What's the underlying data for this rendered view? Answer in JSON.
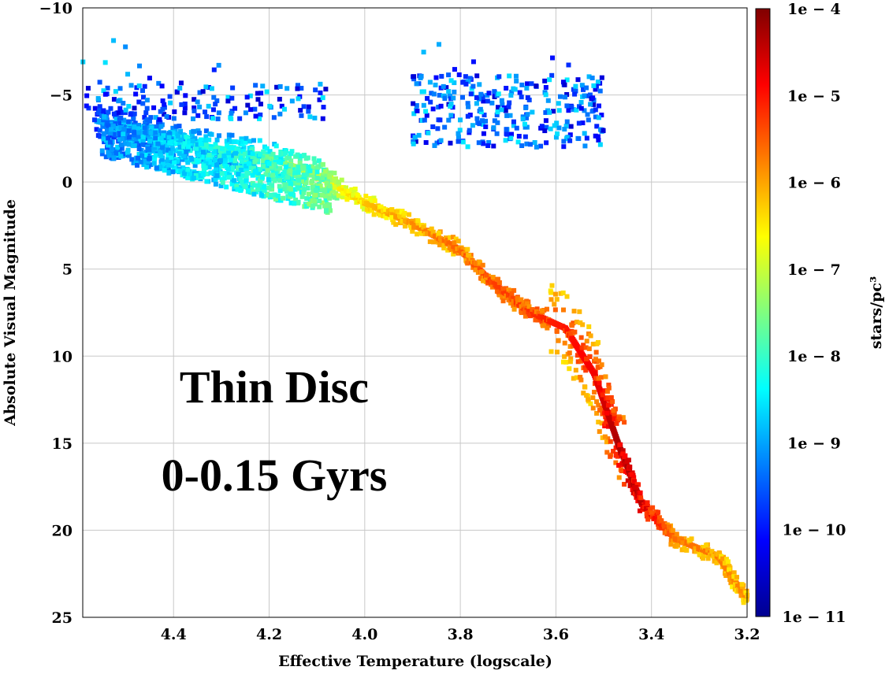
{
  "chart_data": {
    "type": "heatmap",
    "xlabel": "Effective Temperature (logscale)",
    "ylabel": "Absolute Visual Magnitude",
    "xlim": [
      4.59,
      3.2
    ],
    "ylim": [
      25,
      -10
    ],
    "x_ticks": [
      "4.4",
      "4.2",
      "4.0",
      "3.8",
      "3.6",
      "3.4",
      "3.2"
    ],
    "x_tick_values": [
      4.4,
      4.2,
      4.0,
      3.8,
      3.6,
      3.4,
      3.2
    ],
    "y_ticks": [
      "−10",
      "−5",
      "0",
      "5",
      "10",
      "15",
      "20",
      "25"
    ],
    "y_tick_values": [
      -10,
      -5,
      0,
      5,
      10,
      15,
      20,
      25
    ],
    "grid": true,
    "colorbar": {
      "label": "stars/pc³",
      "scale": "log",
      "ticks": [
        "1e − 4",
        "1e − 5",
        "1e − 6",
        "1e − 7",
        "1e − 8",
        "1e − 9",
        "1e − 10",
        "1e − 11"
      ],
      "range_log10": [
        -11,
        -4
      ],
      "colormap": "jet"
    },
    "annotations": [
      "Thin Disc",
      "0-0.15 Gyrs"
    ],
    "main_sequence": [
      {
        "x": 4.56,
        "y": -3.5,
        "log_density": -9.0
      },
      {
        "x": 4.4,
        "y": -2.4,
        "log_density": -8.3
      },
      {
        "x": 4.2,
        "y": -1.4,
        "log_density": -7.6
      },
      {
        "x": 4.1,
        "y": -0.4,
        "log_density": -6.8
      },
      {
        "x": 4.0,
        "y": 1.2,
        "log_density": -6.2
      },
      {
        "x": 3.9,
        "y": 2.4,
        "log_density": -5.8
      },
      {
        "x": 3.8,
        "y": 3.9,
        "log_density": -5.5
      },
      {
        "x": 3.74,
        "y": 5.6,
        "log_density": -5.3
      },
      {
        "x": 3.66,
        "y": 7.4,
        "log_density": -5.2
      },
      {
        "x": 3.58,
        "y": 8.4,
        "log_density": -5.0
      },
      {
        "x": 3.52,
        "y": 11.0,
        "log_density": -4.8
      },
      {
        "x": 3.47,
        "y": 15.0,
        "log_density": -4.3
      },
      {
        "x": 3.42,
        "y": 18.5,
        "log_density": -4.4
      },
      {
        "x": 3.35,
        "y": 20.5,
        "log_density": -5.6
      },
      {
        "x": 3.26,
        "y": 21.5,
        "log_density": -5.7
      },
      {
        "x": 3.2,
        "y": 24.0,
        "log_density": -5.8
      }
    ],
    "giant_clumps": [
      {
        "name_hint": "blue-supergiants",
        "x_range": [
          4.59,
          4.08
        ],
        "y_range": [
          -9.0,
          -1.5
        ],
        "log_density_range": [
          -10.5,
          -8.5
        ]
      },
      {
        "name_hint": "red-giants",
        "x_range": [
          3.9,
          3.5
        ],
        "y_range": [
          -7.5,
          -1.2
        ],
        "log_density_range": [
          -10.5,
          -8.5
        ]
      }
    ]
  }
}
